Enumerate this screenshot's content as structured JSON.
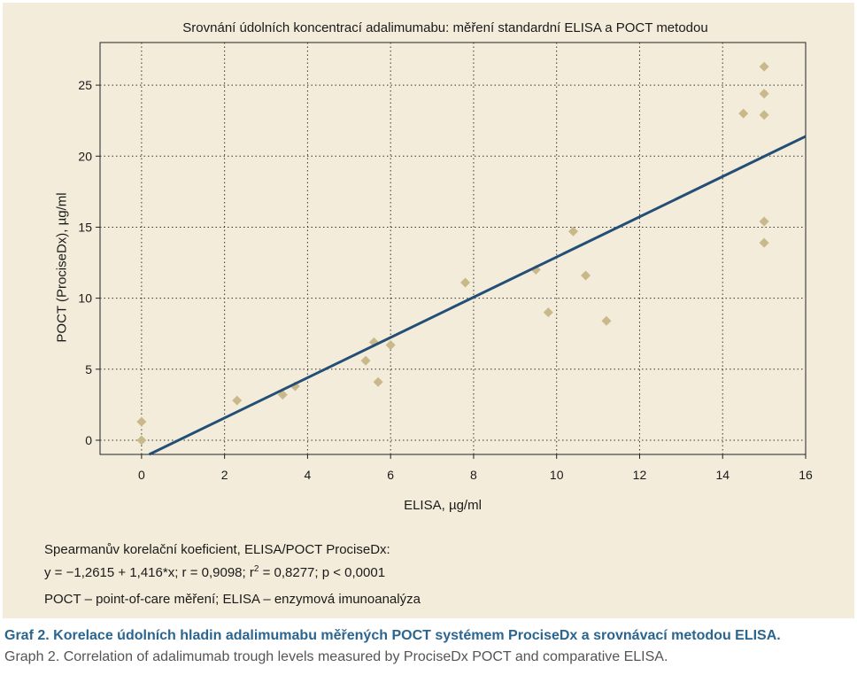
{
  "chart_data": {
    "type": "scatter",
    "title": "Srovnání údolních koncentrací adalimumabu: měření standardní ELISA a POCT metodou",
    "xlabel": "ELISA, µg/ml",
    "ylabel": "POCT (ProciseDx),  µg/ml",
    "xlim": [
      -1,
      16
    ],
    "ylim": [
      -1,
      28
    ],
    "xticks": [
      0,
      2,
      4,
      6,
      8,
      10,
      12,
      14,
      16
    ],
    "yticks": [
      0,
      5,
      10,
      15,
      20,
      25
    ],
    "grid": true,
    "series": [
      {
        "points": [
          [
            0,
            1.3
          ],
          [
            0,
            0
          ],
          [
            2.3,
            2.8
          ],
          [
            3.4,
            3.2
          ],
          [
            3.7,
            3.8
          ],
          [
            5.4,
            5.6
          ],
          [
            5.6,
            6.9
          ],
          [
            5.7,
            4.1
          ],
          [
            6.0,
            6.7
          ],
          [
            7.8,
            11.1
          ],
          [
            9.5,
            12.0
          ],
          [
            9.8,
            9.0
          ],
          [
            10.4,
            14.7
          ],
          [
            10.7,
            11.6
          ],
          [
            11.2,
            8.4
          ],
          [
            14.5,
            23.0
          ],
          [
            15.0,
            26.3
          ],
          [
            15.0,
            24.4
          ],
          [
            15.0,
            22.9
          ],
          [
            15.0,
            15.4
          ],
          [
            15.0,
            13.9
          ]
        ],
        "marker": "diamond",
        "color": "#c9b98a"
      }
    ],
    "regression": {
      "intercept": -1.2615,
      "slope": 1.416,
      "color": "#234e76"
    }
  },
  "stats": {
    "line1": "Spearmanův korelační koeficient, ELISA/POCT  ProciseDx:",
    "line2_before": "y = −1,2615 + 1,416*x;  r = 0,9098;  r",
    "line2_sup": "2",
    "line2_after": " = 0,8277; p < 0,0001"
  },
  "abbreviations": "POCT – point-of-care měření; ELISA – enzymová imunoanalýza",
  "caption": {
    "czech": "Graf 2. Korelace údolních hladin adalimumabu měřených POCT systémem ProciseDx a srovnávací metodou ELISA.",
    "english": "Graph 2. Correlation of adalimumab trough levels measured by ProciseDx POCT and comparative ELISA."
  },
  "colors": {
    "panel": "#f3ecda",
    "marker": "#c9b98a",
    "line": "#234e76",
    "caption": "#2a6590"
  }
}
